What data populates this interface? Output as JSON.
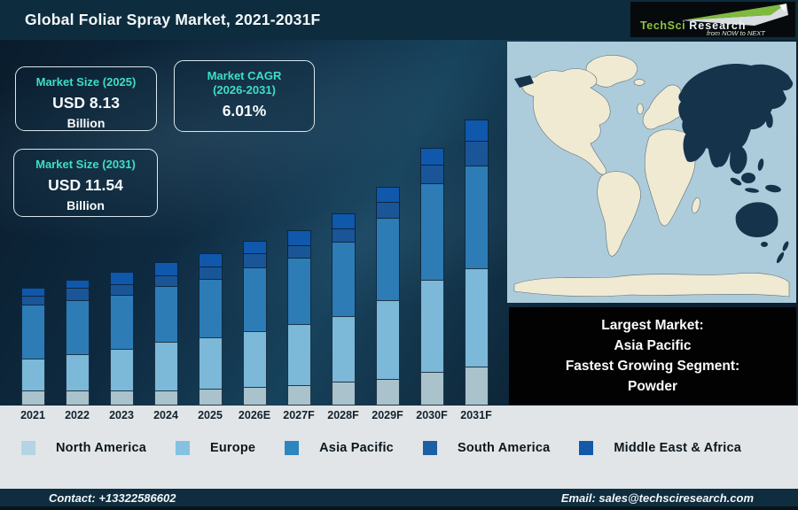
{
  "header": {
    "title": "Global Foliar Spray Market, 2021-2031F",
    "logo": {
      "brand": "TechSci",
      "brand2": "Research",
      "tagline": "from NOW to NEXT"
    }
  },
  "stats": {
    "box1": {
      "label": "Market Size (2025)",
      "value": "USD 8.13",
      "unit": "Billion"
    },
    "box2": {
      "label_line1": "Market CAGR",
      "label_line2": "(2026-2031)",
      "value": "6.01%"
    },
    "box3": {
      "label": "Market Size (2031)",
      "value": "USD 11.54",
      "unit": "Billion"
    }
  },
  "chart_data": {
    "type": "bar",
    "stacked": true,
    "title": "Global Foliar Spray Market, 2021-2031F",
    "categories": [
      "2021",
      "2022",
      "2023",
      "2024",
      "2025",
      "2026E",
      "2027F",
      "2028F",
      "2029F",
      "2030F",
      "2031F"
    ],
    "series": [
      {
        "name": "North America",
        "color": "#a9c2cb",
        "values": [
          17,
          17,
          17,
          17,
          19,
          21,
          23,
          27,
          30,
          38,
          44
        ]
      },
      {
        "name": "Europe",
        "color": "#7cb8d8",
        "values": [
          36,
          41,
          47,
          55,
          58,
          63,
          69,
          74,
          89,
          104,
          111
        ]
      },
      {
        "name": "Asia Pacific",
        "color": "#2d7cb6",
        "values": [
          61,
          61,
          61,
          63,
          66,
          72,
          75,
          84,
          93,
          109,
          116
        ]
      },
      {
        "name": "South America",
        "color": "#1a5598",
        "values": [
          10,
          14,
          12,
          12,
          14,
          16,
          14,
          15,
          18,
          21,
          28
        ]
      },
      {
        "name": "Middle East & Africa",
        "color": "#0f58ab",
        "values": [
          9,
          9,
          14,
          15,
          15,
          14,
          17,
          17,
          17,
          19,
          24
        ]
      }
    ],
    "values_unit": "relative height (no numeric axis shown)",
    "y_axis_visible": false,
    "grid": false,
    "legend_position": "bottom",
    "known_totals": {
      "2025": "USD 8.13 Billion",
      "2031": "USD 11.54 Billion",
      "cagr_2026_2031": "6.01%"
    }
  },
  "map": {
    "highlight_region": "Asia Pacific",
    "ocean_color": "#adccdb",
    "land_color": "#f0ead3",
    "highlight_color": "#16334c",
    "coast_color": "#5f7079"
  },
  "callout": {
    "lines": [
      "Largest Market:",
      "Asia Pacific",
      "Fastest Growing Segment:",
      "Powder"
    ]
  },
  "legend": {
    "items": [
      {
        "label": "North America",
        "color": "#b5d4e3"
      },
      {
        "label": "Europe",
        "color": "#85c2e1"
      },
      {
        "label": "Asia Pacific",
        "color": "#2e85c0"
      },
      {
        "label": "South America",
        "color": "#1c5fa5"
      },
      {
        "label": "Middle East & Africa",
        "color": "#1459a8"
      }
    ]
  },
  "footer": {
    "contact": "Contact: +13322586602",
    "email": "Email: sales@techsciresearch.com"
  },
  "colors": {
    "accent_teal": "#3edec5",
    "titlebar": "#0d2c3d",
    "strip": "#e1e5e7",
    "footer": "#0f2d3e"
  }
}
